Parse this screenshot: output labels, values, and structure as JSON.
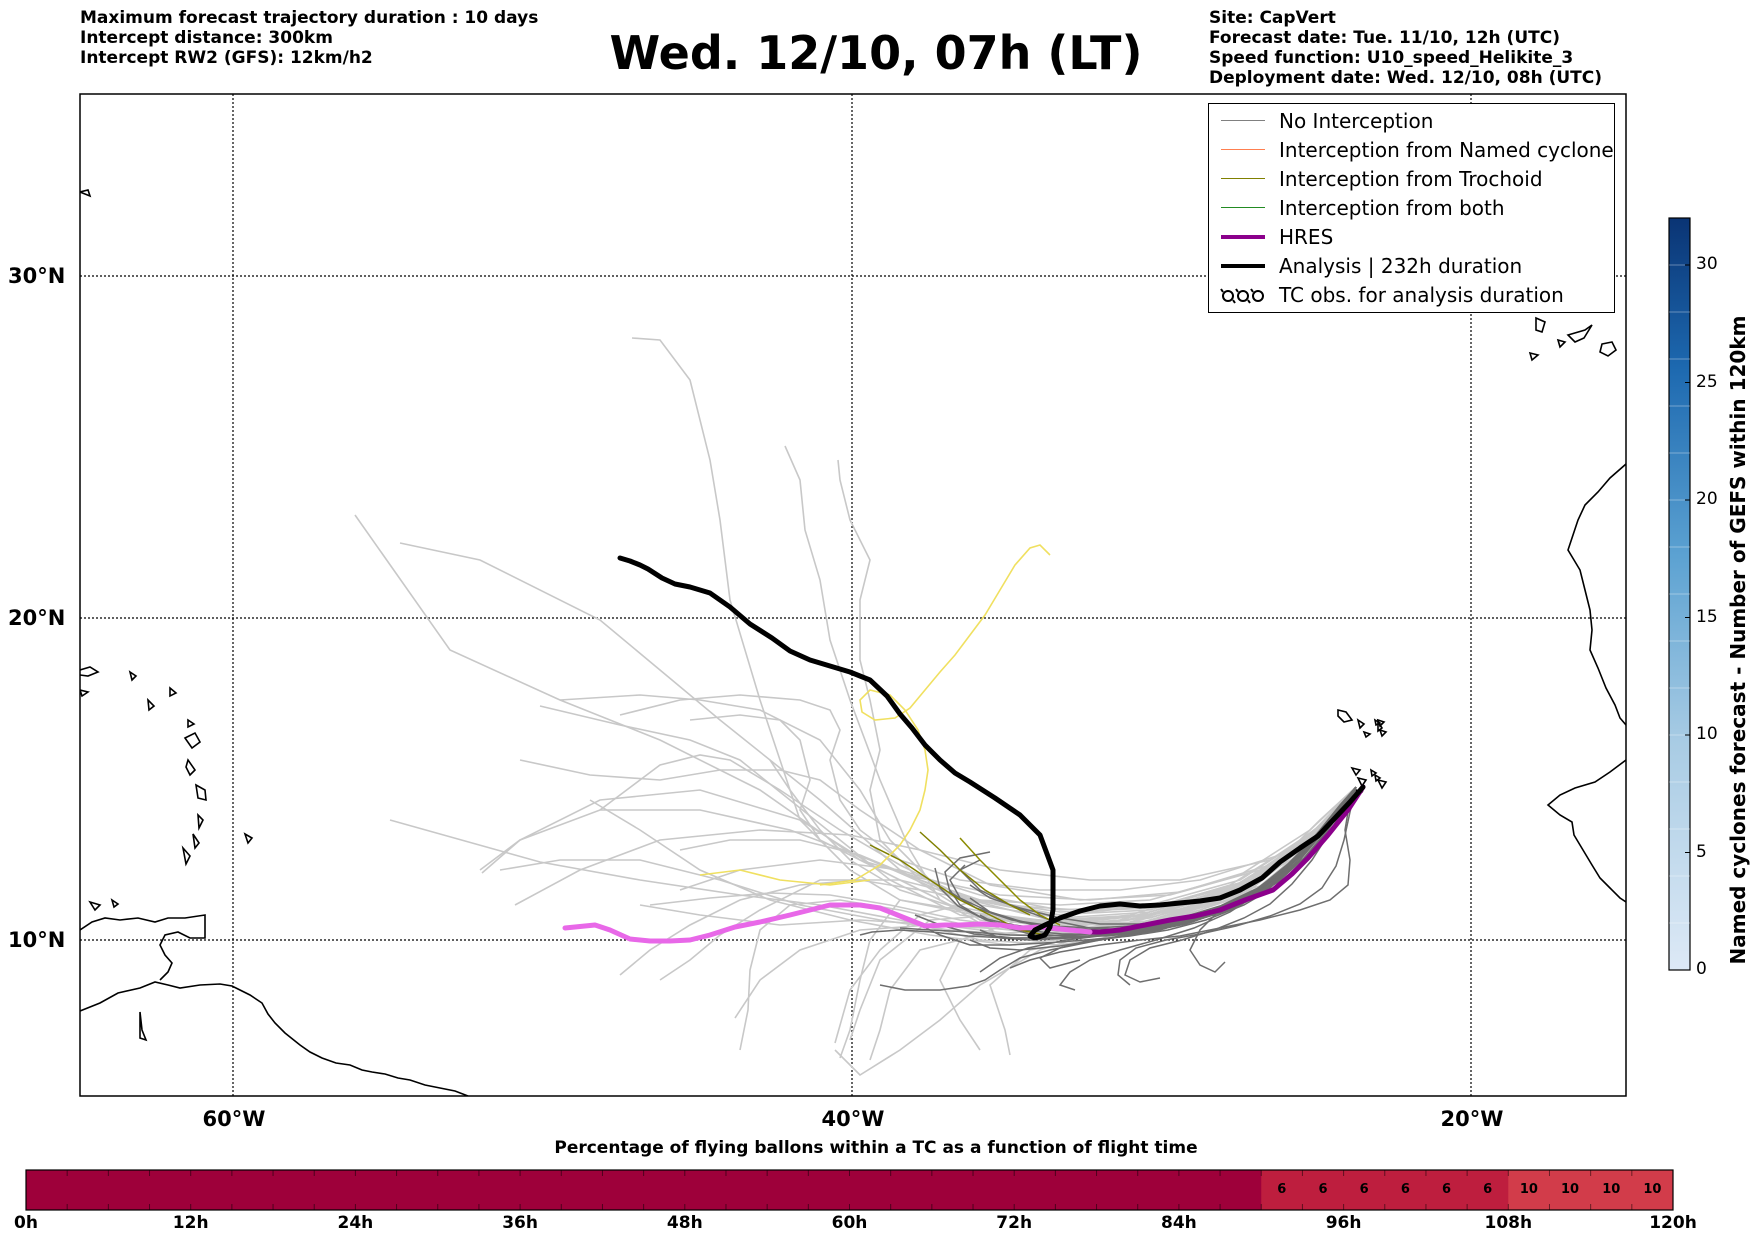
{
  "header_left": [
    "Maximum forecast trajectory duration : 10 days",
    "Intercept distance: 300km",
    "Intercept RW2 (GFS):  12km/h2"
  ],
  "title": "Wed. 12/10, 07h (LT)",
  "header_right": [
    "Site: CapVert",
    "Forecast date: Tue. 11/10, 12h (UTC)",
    "Speed function: U10_speed_Helikite_3",
    "Deployment date: Wed. 12/10, 08h (UTC)"
  ],
  "legend": [
    {
      "label": "No Interception",
      "color": "#808080",
      "style": "line"
    },
    {
      "label": "Interception from Named cyclone",
      "color": "#ff7f50",
      "style": "line"
    },
    {
      "label": "Interception from Trochoid",
      "color": "#808000",
      "style": "line"
    },
    {
      "label": "Interception from both",
      "color": "#228b22",
      "style": "line"
    },
    {
      "label": "HRES",
      "color": "#8b008b",
      "style": "thick"
    },
    {
      "label": "Analysis | 232h duration",
      "color": "#000000",
      "style": "thick"
    },
    {
      "label": "TC obs. for analysis duration",
      "color": "#000000",
      "style": "tc-symbol"
    }
  ],
  "map_axes": {
    "lat_labels": [
      "30°N",
      "20°N",
      "10°N"
    ],
    "lon_labels": [
      "60°W",
      "40°W",
      "20°W"
    ]
  },
  "colorbar": {
    "title": "Named cyclones forecast - Number of GEFS within 120km",
    "ticks": [
      "0",
      "5",
      "10",
      "15",
      "20",
      "25",
      "30"
    ],
    "min": 0,
    "max": 32
  },
  "percentage_bar": {
    "title": "Percentage of flying ballons within a TC as a function of flight time",
    "time_labels": [
      "0h",
      "12h",
      "24h",
      "36h",
      "48h",
      "60h",
      "72h",
      "84h",
      "96h",
      "108h",
      "120h"
    ],
    "values_by_3h": [
      0,
      0,
      0,
      0,
      0,
      0,
      0,
      0,
      0,
      0,
      0,
      0,
      0,
      0,
      0,
      0,
      0,
      0,
      0,
      0,
      0,
      0,
      0,
      0,
      0,
      0,
      0,
      0,
      0,
      0,
      6,
      6,
      6,
      6,
      6,
      6,
      10,
      10,
      10,
      10
    ],
    "colors": {
      "0": "#9e003a",
      "6": "#be1e3e",
      "10": "#d23c4a"
    }
  },
  "chart_data": {
    "type": "line",
    "title": "Wed. 12/10, 07h (LT)",
    "xlabel": "",
    "ylabel": "",
    "xlim": [
      -64.5,
      -15.5
    ],
    "ylim": [
      5.3,
      35.3
    ],
    "x_ticks": [
      -60,
      -40,
      -20
    ],
    "y_ticks": [
      10,
      20,
      30
    ],
    "grid": true,
    "legend_position": "top-right",
    "series": [
      {
        "name": "Analysis | 232h duration",
        "color": "#000000",
        "x": [
          -22.9,
          -23.5,
          -24.5,
          -25.5,
          -27,
          -28.5,
          -30,
          -31,
          -32.5,
          -34,
          -35,
          -35.1,
          -35.3,
          -36,
          -37,
          -38,
          -39,
          -40,
          -40.5,
          -41.5,
          -42,
          -43,
          -44,
          -45,
          -45.5,
          -46,
          -46.3
        ],
        "y": [
          14.8,
          14,
          13.3,
          12.5,
          11.7,
          11.4,
          11.1,
          11.1,
          10.9,
          10.5,
          10.2,
          10.3,
          11,
          12.7,
          13.5,
          14.2,
          15.2,
          16.5,
          17.2,
          17.8,
          18,
          18.4,
          19,
          19.4,
          19.5,
          19.8,
          19.9
        ]
      },
      {
        "name": "HRES",
        "color": "#8b008b",
        "x": [
          -22.9,
          -23.5,
          -24.3,
          -25.2,
          -26,
          -27.5,
          -29,
          -30.5,
          -32,
          -33.5,
          -35,
          -36,
          -37.5,
          -39,
          -40,
          -41,
          -42,
          -43.5,
          -45,
          -46,
          -47,
          -48.2,
          -49.7
        ],
        "y": [
          14.8,
          14,
          13.2,
          12.5,
          11.8,
          11.1,
          10.6,
          10.2,
          10.3,
          10.5,
          10.5,
          10.4,
          10.4,
          10.7,
          11.1,
          11.1,
          11.0,
          10.8,
          10.4,
          10.1,
          10.0,
          10.4,
          10.4
        ]
      }
    ],
    "ensemble_members_no_interception": 50,
    "ensemble_members_trochoid": 3
  }
}
